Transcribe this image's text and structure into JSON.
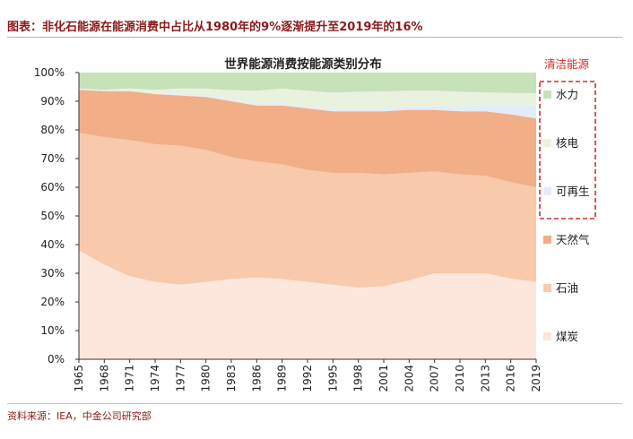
{
  "header": {
    "title": "图表：非化石能源在能源消费中占比从1980年的9%逐渐提升至2019年的16%"
  },
  "footer": {
    "source": "资料来源：IEA，中金公司研究部"
  },
  "colors": {
    "coal": "#fde6dc",
    "oil": "#f8c9ab",
    "gas": "#f2ae86",
    "renewables": "#e3ecf7",
    "nuclear": "#e9f2df",
    "hydro": "#c7e1b8",
    "accent": "#d42b2b",
    "axis": "#333333"
  },
  "chart_data": {
    "type": "area",
    "stacked": true,
    "title": "世界能源消费按能源类别分布",
    "clean_energy_label": "清洁能源",
    "x": [
      1965,
      1968,
      1971,
      1974,
      1977,
      1980,
      1983,
      1986,
      1989,
      1992,
      1995,
      1998,
      2001,
      2004,
      2007,
      2010,
      2013,
      2016,
      2019
    ],
    "x_tick_labels": [
      "1965",
      "1968",
      "1971",
      "1974",
      "1977",
      "1980",
      "1983",
      "1986",
      "1989",
      "1992",
      "1995",
      "1998",
      "2001",
      "2004",
      "2007",
      "2010",
      "2013",
      "2016",
      "2019"
    ],
    "y_tick_labels": [
      "0%",
      "10%",
      "20%",
      "30%",
      "40%",
      "50%",
      "60%",
      "70%",
      "80%",
      "90%",
      "100%"
    ],
    "ylim": [
      0,
      100
    ],
    "series": [
      {
        "name": "煤炭",
        "key": "coal",
        "values": [
          38,
          33,
          29,
          27,
          26,
          27,
          28,
          28.5,
          28,
          27,
          26,
          25,
          25.5,
          27.5,
          30,
          30,
          30,
          28,
          27
        ]
      },
      {
        "name": "石油",
        "key": "oil",
        "values": [
          41,
          44.5,
          47.5,
          48,
          48.5,
          46,
          42.5,
          40.5,
          40,
          39,
          39,
          40,
          39,
          37.5,
          35.5,
          34.5,
          34,
          33.5,
          33
        ]
      },
      {
        "name": "天然气",
        "key": "gas",
        "values": [
          15,
          16,
          17,
          17.5,
          17.5,
          18.5,
          19.5,
          19.5,
          20.5,
          21.5,
          21.5,
          21.5,
          22,
          22,
          21.5,
          22,
          22.5,
          23.5,
          24
        ]
      },
      {
        "name": "可再生",
        "key": "renewables",
        "values": [
          0.2,
          0.2,
          0.2,
          0.2,
          0.3,
          0.3,
          0.4,
          0.4,
          0.5,
          0.6,
          0.6,
          0.7,
          0.8,
          0.9,
          1.2,
          1.6,
          2.2,
          3.0,
          4.5
        ]
      },
      {
        "name": "核电",
        "key": "nuclear",
        "values": [
          0.2,
          0.3,
          0.8,
          1.3,
          2.2,
          2.6,
          3.5,
          4.8,
          5.4,
          5.6,
          5.9,
          6.1,
          6.1,
          5.8,
          5.5,
          5.2,
          4.4,
          4.4,
          4.3
        ]
      },
      {
        "name": "水力",
        "key": "hydro",
        "values": [
          5.6,
          6.0,
          5.5,
          6.0,
          5.5,
          5.6,
          6.1,
          6.3,
          5.6,
          6.3,
          7.0,
          6.7,
          6.6,
          6.3,
          6.3,
          6.7,
          6.9,
          7.1,
          7.2
        ]
      }
    ],
    "legend": {
      "placement": "right",
      "clean_group": [
        "水力",
        "核电",
        "可再生"
      ],
      "order": [
        "水力",
        "核电",
        "可再生",
        "天然气",
        "石油",
        "煤炭"
      ]
    },
    "grid": false
  }
}
